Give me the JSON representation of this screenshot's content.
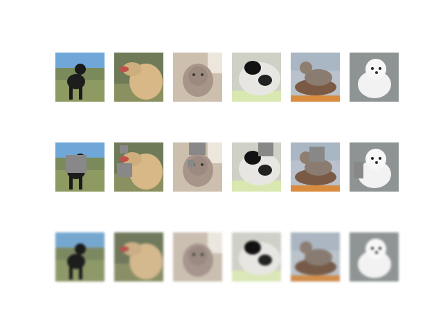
{
  "figure": {
    "rows": [
      {
        "name": "original"
      },
      {
        "name": "masked"
      },
      {
        "name": "reconstruction"
      }
    ],
    "subjects": [
      {
        "subject": "black-poodle-dog",
        "scene": "field-under-blue-sky"
      },
      {
        "subject": "golden-retriever-dog",
        "scene": "grass-background"
      },
      {
        "subject": "tabby-cat",
        "scene": "indoor"
      },
      {
        "subject": "black-white-fluffy-dog",
        "scene": "indoor"
      },
      {
        "subject": "tabby-cat-on-cushion",
        "scene": "indoor"
      },
      {
        "subject": "white-fluffy-dog",
        "scene": "grey-background"
      }
    ],
    "mask_color": "#888888",
    "background_color": "#ffffff"
  }
}
